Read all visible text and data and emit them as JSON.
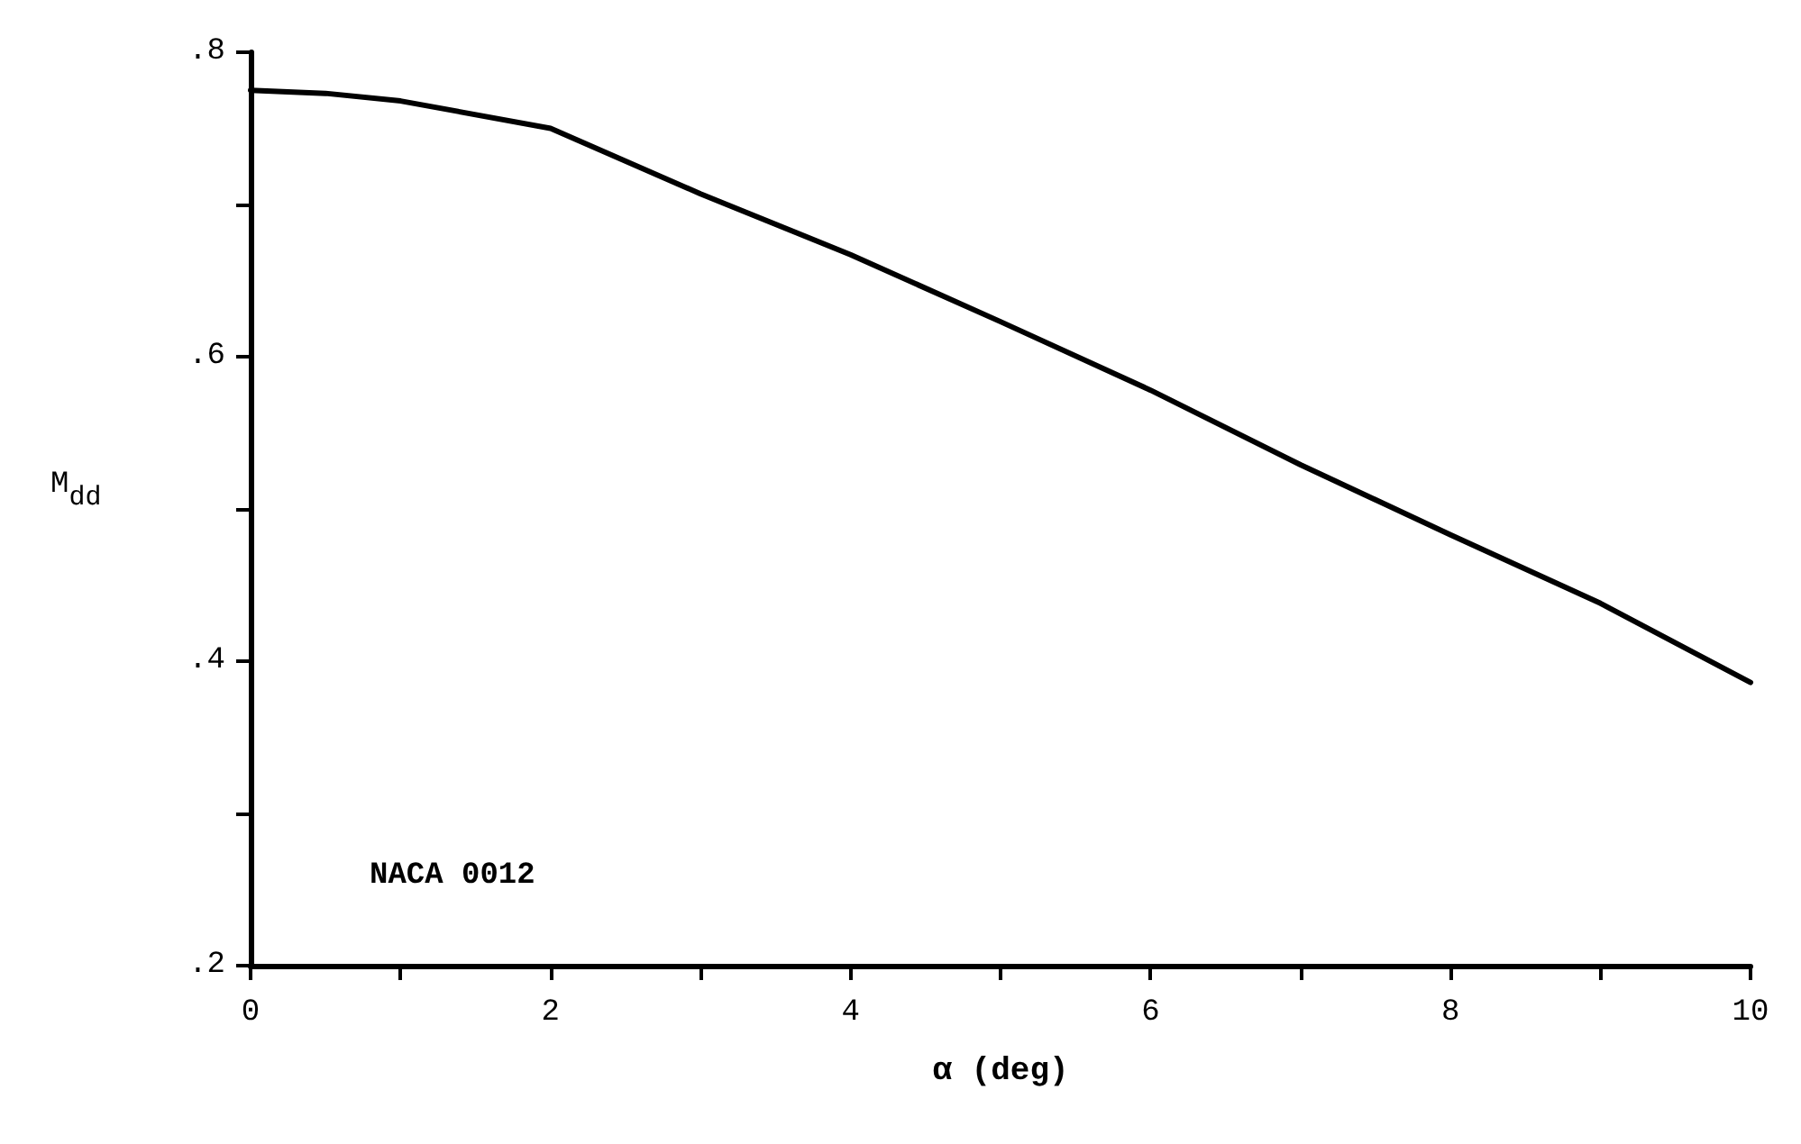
{
  "chart_data": {
    "type": "line",
    "xlabel": "α (deg)",
    "ylabel": "M$_{dd}$",
    "annotations": [
      "NACA 0012"
    ],
    "x": [
      0,
      0.5,
      1,
      2,
      3,
      4,
      5,
      6,
      7,
      8,
      9,
      10
    ],
    "series": [
      {
        "color": "#000000",
        "values": [
          0.775,
          0.773,
          0.768,
          0.75,
          0.707,
          0.667,
          0.623,
          0.578,
          0.529,
          0.483,
          0.438,
          0.386
        ]
      }
    ],
    "xlim": [
      0,
      10
    ],
    "xticks": [
      0,
      {
        "value": 1,
        "label": null
      },
      2,
      {
        "value": 3,
        "label": null
      },
      4,
      {
        "value": 5,
        "label": null
      },
      6,
      {
        "value": 7,
        "label": null
      },
      8,
      {
        "value": 9,
        "label": null
      },
      10
    ],
    "ylim": [
      0.2,
      0.8
    ],
    "yticks": [
      {
        "value": 0.2,
        "label": ".2"
      },
      {
        "value": 0.3,
        "label": null
      },
      {
        "value": 0.4,
        "label": ".4"
      },
      {
        "value": 0.5,
        "label": null
      },
      {
        "value": 0.6,
        "label": ".6"
      },
      {
        "value": 0.7,
        "label": null
      },
      {
        "value": 0.8,
        "label": ".8"
      }
    ],
    "grid": false,
    "marker": "none",
    "line_style": "solid"
  }
}
